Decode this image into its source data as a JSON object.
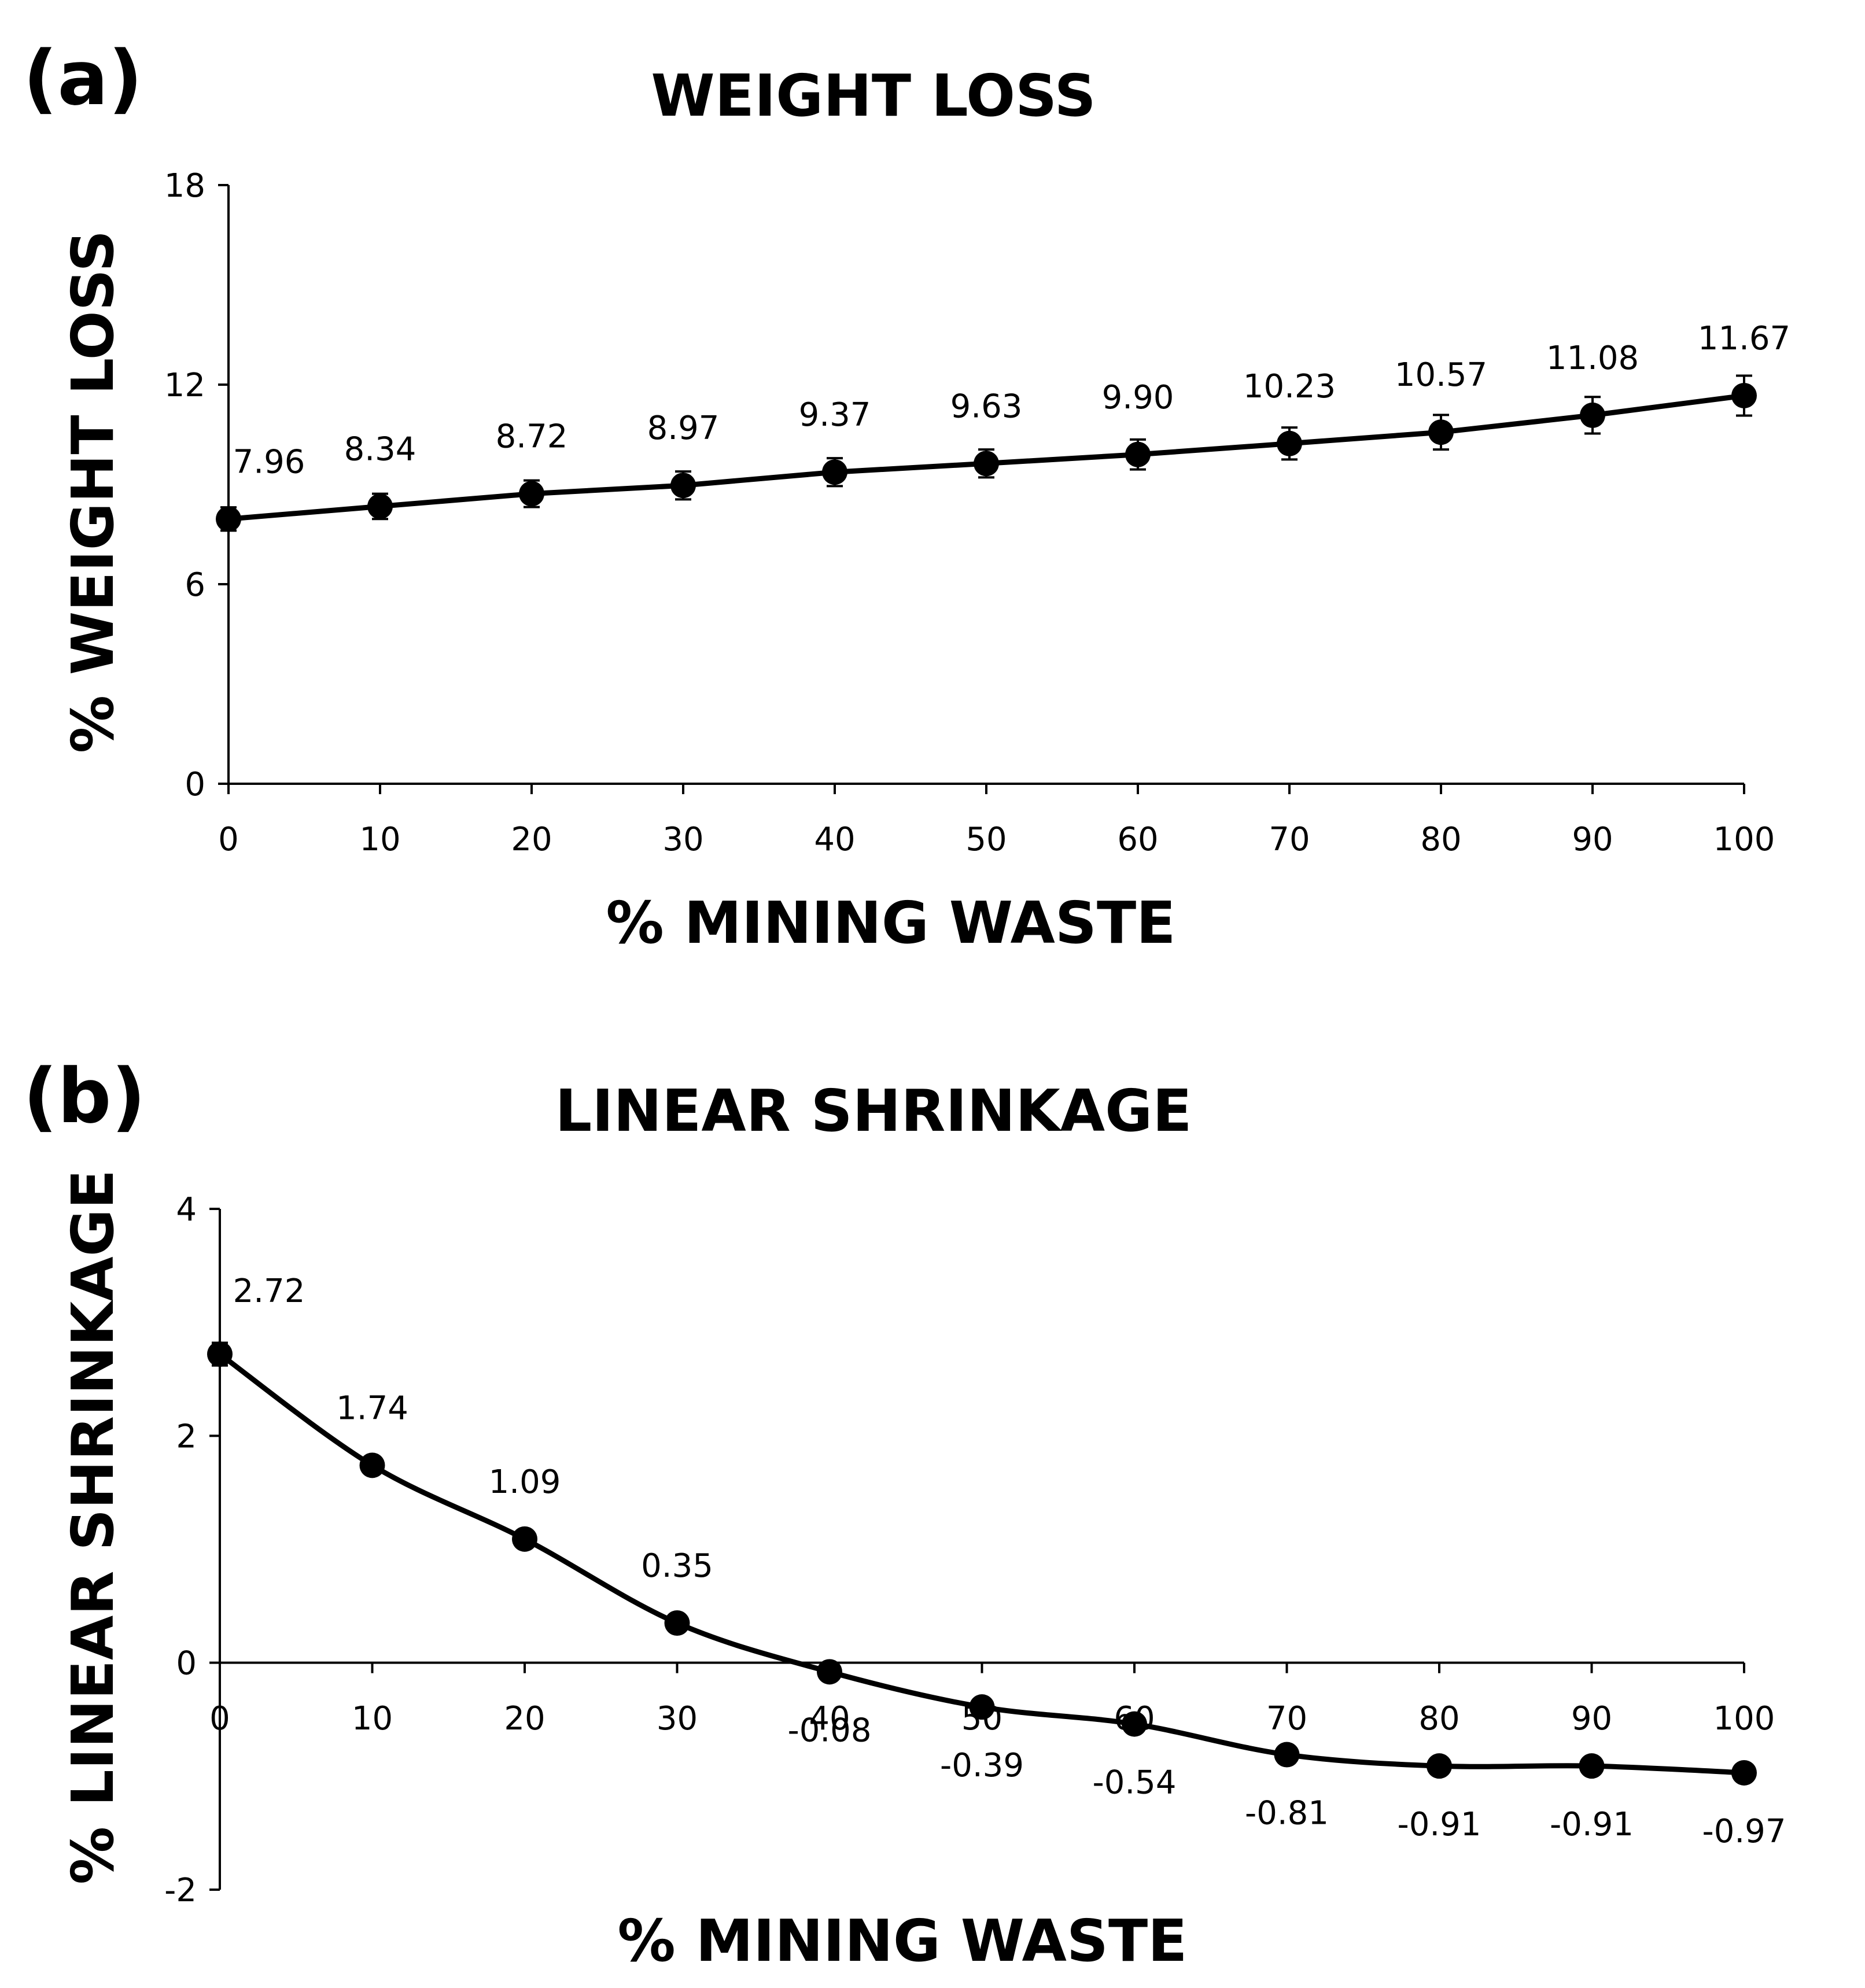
{
  "chart_data": [
    {
      "type": "line",
      "panel": "(a)",
      "title": "WEIGHT LOSS",
      "xlabel": "%  MINING WASTE",
      "ylabel": "% WEIGHT LOSS",
      "x": [
        0,
        10,
        20,
        30,
        40,
        50,
        60,
        70,
        80,
        90,
        100
      ],
      "x_ticks": [
        "0",
        "10",
        "20",
        "30",
        "40",
        "50",
        "60",
        "70",
        "80",
        "90",
        "100"
      ],
      "y_ticks": [
        "0",
        "6",
        "12",
        "18"
      ],
      "xlim": [
        0,
        100
      ],
      "ylim": [
        0,
        18
      ],
      "series": [
        {
          "name": "Weight loss",
          "values": [
            7.96,
            8.34,
            8.72,
            8.97,
            9.37,
            9.63,
            9.9,
            10.23,
            10.57,
            11.08,
            11.67
          ],
          "labels": [
            "7.96",
            "8.34",
            "8.72",
            "8.97",
            "9.37",
            "9.63",
            "9.90",
            "10.23",
            "10.57",
            "11.08",
            "11.67"
          ],
          "errors": [
            0.35,
            0.38,
            0.4,
            0.42,
            0.42,
            0.42,
            0.45,
            0.48,
            0.52,
            0.55,
            0.6
          ]
        }
      ],
      "grid": false,
      "legend": "none"
    },
    {
      "type": "line",
      "panel": "(b)",
      "title": "LINEAR SHRINKAGE",
      "xlabel": "%  MINING WASTE",
      "ylabel": "% LINEAR SHRINKAGE",
      "x": [
        0,
        10,
        20,
        30,
        40,
        50,
        60,
        70,
        80,
        90,
        100
      ],
      "x_ticks": [
        "0",
        "10",
        "20",
        "30",
        "40",
        "50",
        "60",
        "70",
        "80",
        "90",
        "100"
      ],
      "y_ticks": [
        "-2",
        "0",
        "2",
        "4"
      ],
      "xlim": [
        0,
        100
      ],
      "ylim": [
        -2,
        4
      ],
      "series": [
        {
          "name": "Linear shrinkage",
          "values": [
            2.72,
            1.74,
            1.09,
            0.35,
            -0.08,
            -0.39,
            -0.54,
            -0.81,
            -0.91,
            -0.91,
            -0.97
          ],
          "labels": [
            "2.72",
            "1.74",
            "1.09",
            "0.35",
            "-0.08",
            "-0.39",
            "-0.54",
            "-0.81",
            "-0.91",
            "-0.91",
            "-0.97"
          ],
          "errors": [
            0.1,
            0.07,
            0.05,
            0.04,
            0.04,
            0.04,
            0.04,
            0.04,
            0.04,
            0.04,
            0.04
          ]
        }
      ],
      "grid": false,
      "legend": "none"
    }
  ]
}
